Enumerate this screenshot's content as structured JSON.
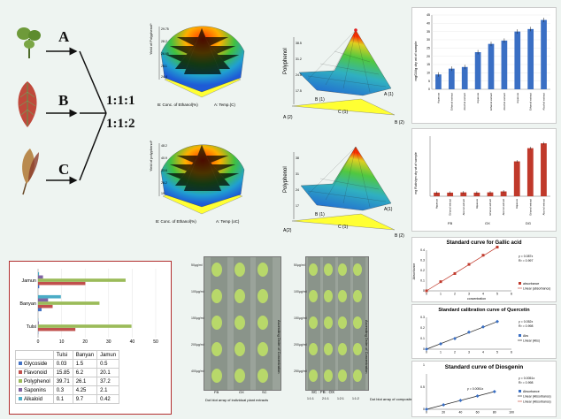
{
  "flow": {
    "labels": [
      "A",
      "B",
      "C"
    ],
    "ratios": [
      "1:1:1",
      "1:1:2"
    ]
  },
  "surface1": {
    "zlabel": "Yield of Polyphenol*",
    "xlabel": "A: Temp.(C)",
    "ylabel": "B: Conc. of Ethanol(%)",
    "zticks": [
      "29.75",
      "28.2",
      "26.65",
      "25.1",
      "24.4"
    ]
  },
  "surface2": {
    "zlabel": "Yield of polyphenol*",
    "xlabel": "A: Temp (oC)",
    "ylabel": "B: Conc. of Ethanol(%)",
    "zticks": [
      "48.2",
      "40.9",
      "33.6",
      "26.2",
      "19"
    ]
  },
  "mixture1": {
    "zlabel": "Polyphenol",
    "vertices": [
      "A (1)",
      "B (1)",
      "C (1)",
      "A (2)",
      "B (2)"
    ],
    "zticks": [
      "38.5",
      "31.2",
      "24.5",
      "17.5"
    ]
  },
  "mixture2": {
    "zlabel": "Polyphenol",
    "vertices": [
      "A(1)",
      "B (1)",
      "C (1)",
      "A(2)",
      "B (2)"
    ],
    "zticks": [
      "38",
      "31",
      "24",
      "17"
    ]
  },
  "colors": {
    "blue_bar": "#3a6fc4",
    "red_bar": "#c0392b",
    "surface_top": "#ff2a00",
    "surface_mid": "#40c040",
    "surface_low": "#1e5bd6",
    "floor": "#ffff33",
    "box_border": "#b23030"
  },
  "bar_blue": {
    "ylabel": "mgGA/g dry wt of sample",
    "yticks": [
      "0",
      "5",
      "10",
      "15",
      "20",
      "25",
      "30",
      "35",
      "40",
      "45"
    ],
    "categories": [
      "Aqueous",
      "Ethanol extract",
      "Alcohol extract",
      "Aqueous",
      "Ethanol extract",
      "Alcohol extract",
      "Aqueous",
      "Ethanol extract",
      "Alcohol extract"
    ]
  },
  "bar_red": {
    "ylabel": "mg Rutin/gm dry wt of sample",
    "groups": [
      "FB",
      "OX",
      "DG"
    ]
  },
  "std_gallic": {
    "title": "Standard curve for Gallic acid",
    "equation": "y = 0.087x",
    "r2": "R² = 0.997",
    "xlabel": "concentration",
    "ylabel": "Absorbance",
    "legend": [
      "absorbance",
      "Linear (absorbance)"
    ]
  },
  "std_quercetin": {
    "title": "Standard calibration curve of Quercetin",
    "equation": "y = 0.052x",
    "r2": "R² = 0.998",
    "legend": [
      "Abs",
      "Linear (Abs)"
    ]
  },
  "std_diosgenin": {
    "title": "Standard curve of Diosgenin",
    "equation": "y = 0.0051x",
    "r2": "R² = 0.998",
    "point_label": "y = 0.0051x",
    "legend": [
      "Absorbance",
      "Linear (Absorbance)",
      "Linear (Absorbance)"
    ]
  },
  "tlc1": {
    "axis_label": "Ascending Order of Concentration",
    "lane_labels": [
      "FB",
      "OX",
      "SC"
    ],
    "caption": "Dot blot array of individual plant extracts",
    "conc_labels": [
      "50µg/ml",
      "100µg/ml",
      "150µg/ml",
      "200µg/ml",
      "400µg/ml"
    ]
  },
  "tlc2": {
    "axis_label": "Ascending Order of Concentration",
    "mix_label": "SC : FB : OX",
    "lane_labels": [
      "1:1:1",
      "2:1:1",
      "1:2:1",
      "1:1:2"
    ],
    "caption": "Dot blot array of composites",
    "conc_labels": [
      "50µg/ml",
      "100µg/ml",
      "150µg/ml",
      "200µg/ml",
      "250µg/ml"
    ]
  },
  "chart_data": [
    {
      "type": "bar",
      "orientation": "horizontal",
      "categories": [
        "Tulsi",
        "Banyan",
        "Jamun"
      ],
      "series": [
        {
          "name": "Glycoside",
          "values": [
            0.03,
            1.5,
            0.5
          ],
          "color": "#4472c4"
        },
        {
          "name": "Flavonoid",
          "values": [
            15.85,
            6.2,
            20.1
          ],
          "color": "#c0504d"
        },
        {
          "name": "Polyphenol",
          "values": [
            39.71,
            26.1,
            37.2
          ],
          "color": "#9bbb59"
        },
        {
          "name": "Saponins",
          "values": [
            0.3,
            4.25,
            2.1
          ],
          "color": "#8064a2"
        },
        {
          "name": "Alkaloid",
          "values": [
            0.1,
            9.7,
            0.42
          ],
          "color": "#4bacc6"
        }
      ],
      "xlim": [
        0,
        50
      ],
      "xticks": [
        "0",
        "10",
        "20",
        "30",
        "40",
        "50"
      ],
      "table_header": [
        "",
        "Tulsi",
        "Banyan",
        "Jamun"
      ]
    },
    {
      "type": "bar",
      "name": "polyphenol_by_extract",
      "values": [
        9,
        12.5,
        13.5,
        22.5,
        27.5,
        29.5,
        35,
        36.5,
        42
      ],
      "ylim": [
        0,
        45
      ]
    },
    {
      "type": "bar",
      "name": "flavonoid_by_extract",
      "values": [
        3,
        3,
        3.2,
        3,
        3.2,
        4,
        29,
        40,
        44
      ],
      "ylim": [
        0,
        50
      ]
    },
    {
      "type": "scatter",
      "name": "gallic_acid_standard",
      "x": [
        0,
        1,
        2,
        3,
        4,
        5
      ],
      "y": [
        0,
        0.09,
        0.17,
        0.26,
        0.35,
        0.43
      ],
      "xlim": [
        0,
        6
      ],
      "ylim": [
        0,
        0.4
      ],
      "xticks": [
        "0",
        "1",
        "2",
        "3",
        "4",
        "5",
        "6"
      ],
      "yticks": [
        "0",
        "0.1",
        "0.2",
        "0.3",
        "0.4"
      ]
    },
    {
      "type": "scatter",
      "name": "quercetin_standard",
      "x": [
        0,
        1,
        2,
        3,
        4,
        5
      ],
      "y": [
        0,
        0.05,
        0.1,
        0.16,
        0.21,
        0.26
      ],
      "xlim": [
        0,
        6
      ],
      "ylim": [
        0,
        0.3
      ],
      "xticks": [
        "0",
        "1",
        "2",
        "3",
        "4",
        "5",
        "6"
      ],
      "yticks": [
        "0",
        "0.1",
        "0.2",
        "0.3"
      ]
    },
    {
      "type": "scatter",
      "name": "diosgenin_standard",
      "x": [
        0,
        20,
        40,
        60,
        80
      ],
      "y": [
        0,
        0.1,
        0.2,
        0.3,
        0.4
      ],
      "xlim": [
        0,
        100
      ],
      "ylim": [
        0,
        0.8
      ],
      "xticks": [
        "0",
        "20",
        "40",
        "60",
        "80",
        "100"
      ],
      "yticks": [
        "0",
        "0.5",
        "1"
      ]
    }
  ]
}
